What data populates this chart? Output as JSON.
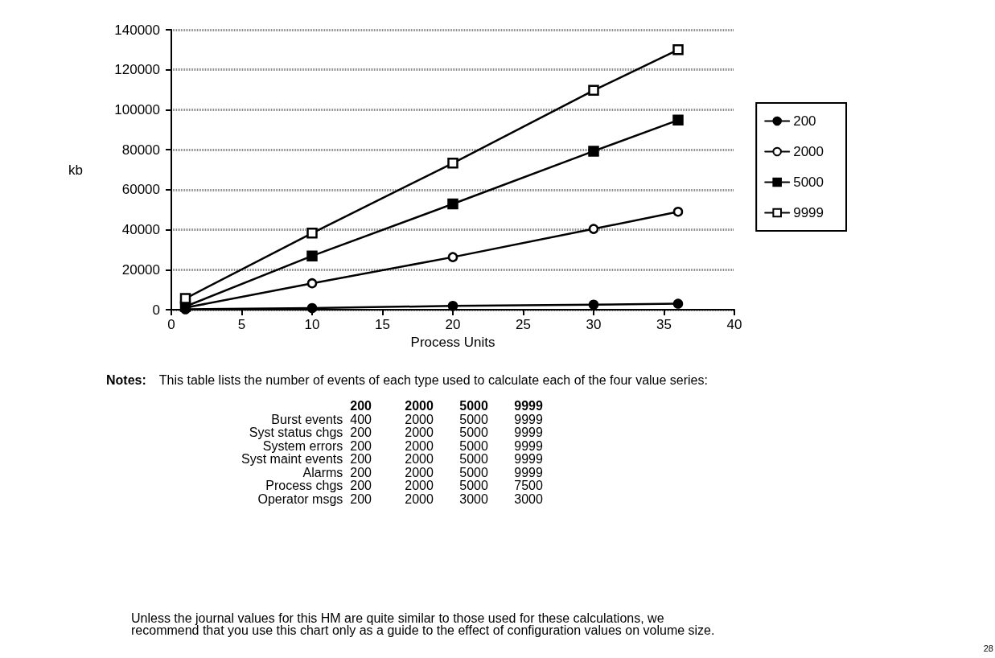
{
  "chart_data": {
    "type": "line",
    "xlabel": "Process Units",
    "ylabel": "kb",
    "x": [
      1,
      10,
      20,
      30,
      36
    ],
    "series": [
      {
        "name": "200",
        "color": "#000000",
        "marker": "circle",
        "colors": [
          "#000000",
          "#000000",
          "#000000",
          "#000000",
          "#000000"
        ],
        "values": [
          200,
          800,
          1900,
          2500,
          3000
        ]
      },
      {
        "name": "2000",
        "color": "#000000",
        "marker": "circle",
        "colors": [
          "#ffffff",
          "#ffffff",
          "#ffffff",
          "#ffffff",
          "#ffffff"
        ],
        "values": [
          1000,
          13200,
          26300,
          40400,
          49000
        ]
      },
      {
        "name": "5000",
        "color": "#000000",
        "marker": "square",
        "colors": [
          "#000000",
          "#000000",
          "#000000",
          "#000000",
          "#000000"
        ],
        "values": [
          1600,
          26900,
          52900,
          79300,
          94800
        ]
      },
      {
        "name": "9999",
        "color": "#000000",
        "marker": "square",
        "colors": [
          "#ffffff",
          "#ffffff",
          "#ffffff",
          "#ffffff",
          "#ffffff"
        ],
        "values": [
          5600,
          38300,
          73300,
          109700,
          130000
        ]
      }
    ],
    "xlim": [
      0,
      40
    ],
    "xticks": [
      0,
      5,
      10,
      15,
      20,
      25,
      30,
      35,
      40
    ],
    "ylim": [
      0,
      140000
    ],
    "yticks": [
      0,
      20000,
      40000,
      60000,
      80000,
      100000,
      120000,
      140000
    ],
    "grid": "y",
    "legend": "right",
    "line_style": "solid",
    "annotations": [
      "Notes:\tThis table lists the number of events of each type used to calculate each of the four value series:",
      "\t200\t2000\t5000\t9999",
      "Burst events\t400\t2000\t5000\t9999",
      "Syst status chgs\t200\t2000\t5000\t9999",
      "System errors\t200\t2000\t5000\t9999",
      "Syst maint events\t200\t2000\t5000\t9999",
      "Alarms\t200\t2000\t5000\t9999",
      "Process chgs\t200\t2000\t5000\t7500",
      "Operator msgs\t200\t2000\t3000\t3000",
      "Unless the journal values for this HM are quite similar to those used for these calculations, we\nrecommend that you use this chart only as a guide to the effect of configuration values on volume size.",
      "28"
    ]
  }
}
